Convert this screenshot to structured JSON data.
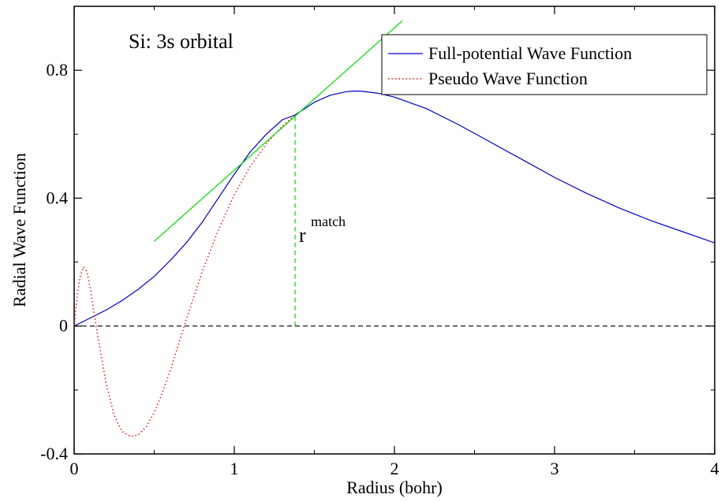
{
  "chart_data": {
    "type": "line",
    "xlabel": "Radius (bohr)",
    "ylabel": "Radial Wave Function",
    "xlim": [
      0,
      4
    ],
    "ylim": [
      -0.4,
      1.0
    ],
    "xticks": [
      {
        "value": 0,
        "label": "0"
      },
      {
        "value": 1,
        "label": "1"
      },
      {
        "value": 2,
        "label": "2"
      },
      {
        "value": 3,
        "label": "3"
      },
      {
        "value": 4,
        "label": "4"
      }
    ],
    "yticks": [
      {
        "value": -0.4,
        "label": "-0.4"
      },
      {
        "value": 0,
        "label": "0"
      },
      {
        "value": 0.4,
        "label": "0.4"
      },
      {
        "value": 0.8,
        "label": "0.8"
      }
    ],
    "grid": false,
    "legend_position": "top-right",
    "annotations": {
      "orbital_label": "Si: 3s orbital",
      "match_label_base": "r",
      "match_label_sup": "match"
    },
    "series": [
      {
        "name": "Full-potential Wave Function",
        "color": "#0000cc",
        "style": "solid",
        "x": [
          0,
          0.1,
          0.2,
          0.3,
          0.4,
          0.5,
          0.6,
          0.7,
          0.8,
          0.9,
          1.0,
          1.1,
          1.2,
          1.3,
          1.38,
          1.5,
          1.6,
          1.7,
          1.75,
          1.8,
          1.9,
          2.0,
          2.2,
          2.4,
          2.6,
          2.8,
          3.0,
          3.2,
          3.4,
          3.6,
          3.8,
          4.0
        ],
        "y": [
          0,
          0.025,
          0.05,
          0.08,
          0.115,
          0.155,
          0.205,
          0.26,
          0.325,
          0.4,
          0.475,
          0.545,
          0.6,
          0.645,
          0.66,
          0.7,
          0.722,
          0.733,
          0.735,
          0.734,
          0.728,
          0.716,
          0.68,
          0.63,
          0.575,
          0.52,
          0.465,
          0.415,
          0.37,
          0.33,
          0.295,
          0.26
        ]
      },
      {
        "name": "Pseudo Wave Function",
        "color": "#ff0000",
        "style": "dotted",
        "x": [
          0,
          0.02,
          0.04,
          0.06,
          0.08,
          0.1,
          0.15,
          0.2,
          0.25,
          0.3,
          0.35,
          0.4,
          0.45,
          0.5,
          0.55,
          0.6,
          0.7,
          0.8,
          0.9,
          1.0,
          1.1,
          1.2,
          1.3,
          1.38
        ],
        "y": [
          0,
          0.1,
          0.16,
          0.185,
          0.17,
          0.12,
          -0.04,
          -0.18,
          -0.28,
          -0.33,
          -0.345,
          -0.34,
          -0.315,
          -0.27,
          -0.21,
          -0.14,
          0.02,
          0.17,
          0.3,
          0.41,
          0.5,
          0.57,
          0.625,
          0.66
        ]
      },
      {
        "name": "",
        "color": "#00dd00",
        "style": "solid",
        "x": [
          0.5,
          2.05
        ],
        "y": [
          0.265,
          0.955
        ]
      },
      {
        "name": "",
        "color": "#00dd00",
        "style": "dashed",
        "x": [
          1.38,
          1.38
        ],
        "y": [
          0,
          0.66
        ]
      },
      {
        "name": "",
        "color": "#000000",
        "style": "dashed",
        "x": [
          0,
          4
        ],
        "y": [
          0,
          0
        ]
      }
    ]
  }
}
